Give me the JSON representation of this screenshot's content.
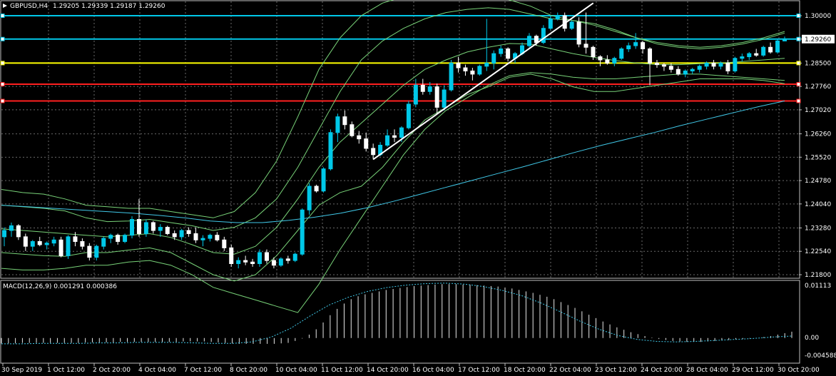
{
  "header": {
    "symbol": "GBPUSD,H4",
    "ohlc": "1.29205 1.29339 1.29187 1.29260"
  },
  "macd": {
    "label": "MACD(12,26,9) 0.001291 0.000386",
    "scale": [
      "0.01113",
      "0.00",
      "-0.004588"
    ]
  },
  "chart_data": {
    "type": "candlestick",
    "instrument": "GBPUSD",
    "timeframe": "H4",
    "price_ticks": [
      "1.30000",
      "1.29260",
      "1.28500",
      "1.27760",
      "1.27020",
      "1.26260",
      "1.25520",
      "1.24780",
      "1.24040",
      "1.23280",
      "1.22540",
      "1.21800"
    ],
    "price_range": [
      1.218,
      1.304
    ],
    "current_price": "1.29260",
    "x_ticks": [
      "30 Sep 2019",
      "1 Oct 12:00",
      "2 Oct 20:00",
      "4 Oct 04:00",
      "7 Oct 12:00",
      "8 Oct 20:00",
      "10 Oct 04:00",
      "11 Oct 12:00",
      "14 Oct 20:00",
      "16 Oct 04:00",
      "17 Oct 12:00",
      "18 Oct 20:00",
      "22 Oct 04:00",
      "23 Oct 12:00",
      "24 Oct 20:00",
      "28 Oct 04:00",
      "29 Oct 12:00",
      "30 Oct 20:00"
    ],
    "horizontal_levels": [
      {
        "price": 1.3,
        "color": "#00c8e8"
      },
      {
        "price": 1.2926,
        "color": "#00c8e8"
      },
      {
        "price": 1.285,
        "color": "#ffff00"
      },
      {
        "price": 1.2783,
        "color": "#ff2020"
      },
      {
        "price": 1.273,
        "color": "#ff2020"
      }
    ],
    "trendline": {
      "from": [
        1.2545,
        1.255
      ],
      "to": [
        1.298,
        1.304
      ],
      "color": "#ffffff"
    },
    "candles": [
      [
        1.23,
        1.233,
        1.227,
        1.232
      ],
      [
        1.232,
        1.2345,
        1.23,
        1.2335
      ],
      [
        1.2335,
        1.234,
        1.229,
        1.23
      ],
      [
        1.23,
        1.231,
        1.2255,
        1.227
      ],
      [
        1.227,
        1.229,
        1.2255,
        1.2285
      ],
      [
        1.2285,
        1.23,
        1.227,
        1.2275
      ],
      [
        1.2275,
        1.2285,
        1.226,
        1.228
      ],
      [
        1.228,
        1.23,
        1.227,
        1.229
      ],
      [
        1.229,
        1.23,
        1.2235,
        1.224
      ],
      [
        1.224,
        1.2305,
        1.223,
        1.23
      ],
      [
        1.23,
        1.2315,
        1.227,
        1.2285
      ],
      [
        1.2285,
        1.2295,
        1.226,
        1.227
      ],
      [
        1.227,
        1.228,
        1.2225,
        1.2235
      ],
      [
        1.2235,
        1.2275,
        1.2225,
        1.227
      ],
      [
        1.227,
        1.23,
        1.226,
        1.2295
      ],
      [
        1.2295,
        1.231,
        1.228,
        1.2305
      ],
      [
        1.2305,
        1.231,
        1.2275,
        1.2285
      ],
      [
        1.2285,
        1.231,
        1.228,
        1.2305
      ],
      [
        1.2305,
        1.2365,
        1.2295,
        1.2355
      ],
      [
        1.2355,
        1.242,
        1.23,
        1.231
      ],
      [
        1.231,
        1.2355,
        1.23,
        1.2345
      ],
      [
        1.2345,
        1.235,
        1.231,
        1.232
      ],
      [
        1.232,
        1.234,
        1.23,
        1.233
      ],
      [
        1.233,
        1.2335,
        1.2305,
        1.231
      ],
      [
        1.231,
        1.232,
        1.229,
        1.23
      ],
      [
        1.23,
        1.2325,
        1.229,
        1.232
      ],
      [
        1.232,
        1.233,
        1.23,
        1.231
      ],
      [
        1.231,
        1.233,
        1.228,
        1.229
      ],
      [
        1.229,
        1.2305,
        1.227,
        1.2295
      ],
      [
        1.2295,
        1.231,
        1.2285,
        1.2305
      ],
      [
        1.2305,
        1.2315,
        1.2285,
        1.229
      ],
      [
        1.229,
        1.23,
        1.2255,
        1.2265
      ],
      [
        1.2265,
        1.2275,
        1.2205,
        1.2215
      ],
      [
        1.2215,
        1.2235,
        1.22,
        1.2225
      ],
      [
        1.2225,
        1.224,
        1.221,
        1.222
      ],
      [
        1.222,
        1.223,
        1.2205,
        1.2215
      ],
      [
        1.2215,
        1.226,
        1.2205,
        1.225
      ],
      [
        1.225,
        1.226,
        1.2215,
        1.2225
      ],
      [
        1.2225,
        1.2235,
        1.22,
        1.221
      ],
      [
        1.221,
        1.2235,
        1.2205,
        1.223
      ],
      [
        1.223,
        1.224,
        1.2215,
        1.2225
      ],
      [
        1.2225,
        1.225,
        1.222,
        1.2245
      ],
      [
        1.2245,
        1.239,
        1.224,
        1.2385
      ],
      [
        1.2385,
        1.247,
        1.237,
        1.246
      ],
      [
        1.246,
        1.2465,
        1.244,
        1.2445
      ],
      [
        1.2445,
        1.252,
        1.244,
        1.2515
      ],
      [
        1.2515,
        1.264,
        1.251,
        1.263
      ],
      [
        1.263,
        1.269,
        1.26,
        1.268
      ],
      [
        1.268,
        1.27,
        1.264,
        1.2655
      ],
      [
        1.2655,
        1.2665,
        1.2615,
        1.262
      ],
      [
        1.262,
        1.2635,
        1.2595,
        1.261
      ],
      [
        1.261,
        1.263,
        1.257,
        1.258
      ],
      [
        1.258,
        1.2595,
        1.2545,
        1.256
      ],
      [
        1.256,
        1.26,
        1.2555,
        1.259
      ],
      [
        1.259,
        1.264,
        1.2585,
        1.262
      ],
      [
        1.262,
        1.264,
        1.26,
        1.2615
      ],
      [
        1.2615,
        1.265,
        1.26,
        1.2645
      ],
      [
        1.2645,
        1.273,
        1.264,
        1.272
      ],
      [
        1.272,
        1.28,
        1.271,
        1.278
      ],
      [
        1.278,
        1.28,
        1.275,
        1.276
      ],
      [
        1.276,
        1.279,
        1.275,
        1.2775
      ],
      [
        1.2775,
        1.2785,
        1.269,
        1.271
      ],
      [
        1.271,
        1.278,
        1.27,
        1.2765
      ],
      [
        1.2765,
        1.286,
        1.276,
        1.285
      ],
      [
        1.285,
        1.287,
        1.282,
        1.2835
      ],
      [
        1.2835,
        1.2845,
        1.281,
        1.2825
      ],
      [
        1.2825,
        1.2835,
        1.2795,
        1.2815
      ],
      [
        1.2815,
        1.2845,
        1.281,
        1.284
      ],
      [
        1.284,
        1.299,
        1.2825,
        1.285
      ],
      [
        1.285,
        1.289,
        1.283,
        1.288
      ],
      [
        1.288,
        1.2905,
        1.287,
        1.2895
      ],
      [
        1.2895,
        1.29,
        1.2855,
        1.2865
      ],
      [
        1.2865,
        1.2885,
        1.285,
        1.288
      ],
      [
        1.288,
        1.2915,
        1.2875,
        1.2905
      ],
      [
        1.2905,
        1.2945,
        1.29,
        1.2935
      ],
      [
        1.2935,
        1.294,
        1.2905,
        1.2915
      ],
      [
        1.2915,
        1.297,
        1.291,
        1.296
      ],
      [
        1.296,
        1.3,
        1.2955,
        1.299
      ],
      [
        1.299,
        1.301,
        1.2985,
        1.3
      ],
      [
        1.3,
        1.301,
        1.295,
        1.296
      ],
      [
        1.296,
        1.2985,
        1.2955,
        1.298
      ],
      [
        1.298,
        1.2995,
        1.29,
        1.291
      ],
      [
        1.291,
        1.301,
        1.288,
        1.29
      ],
      [
        1.29,
        1.2905,
        1.286,
        1.287
      ],
      [
        1.287,
        1.2875,
        1.284,
        1.286
      ],
      [
        1.286,
        1.2875,
        1.2845,
        1.285
      ],
      [
        1.285,
        1.287,
        1.284,
        1.2865
      ],
      [
        1.2865,
        1.29,
        1.286,
        1.2895
      ],
      [
        1.2895,
        1.2915,
        1.2885,
        1.2905
      ],
      [
        1.2905,
        1.2945,
        1.2895,
        1.2915
      ],
      [
        1.2915,
        1.292,
        1.288,
        1.2895
      ],
      [
        1.2895,
        1.29,
        1.278,
        1.285
      ],
      [
        1.285,
        1.286,
        1.2835,
        1.2845
      ],
      [
        1.2845,
        1.285,
        1.2825,
        1.284
      ],
      [
        1.284,
        1.285,
        1.282,
        1.283
      ],
      [
        1.283,
        1.284,
        1.281,
        1.2815
      ],
      [
        1.2815,
        1.283,
        1.2805,
        1.2825
      ],
      [
        1.2825,
        1.2835,
        1.2815,
        1.283
      ],
      [
        1.283,
        1.2845,
        1.282,
        1.284
      ],
      [
        1.284,
        1.2855,
        1.283,
        1.285
      ],
      [
        1.285,
        1.286,
        1.283,
        1.284
      ],
      [
        1.284,
        1.2855,
        1.283,
        1.285
      ],
      [
        1.285,
        1.286,
        1.2815,
        1.2825
      ],
      [
        1.2825,
        1.287,
        1.282,
        1.2865
      ],
      [
        1.2865,
        1.288,
        1.2855,
        1.287
      ],
      [
        1.287,
        1.2885,
        1.286,
        1.288
      ],
      [
        1.288,
        1.2895,
        1.287,
        1.2875
      ],
      [
        1.2875,
        1.2905,
        1.287,
        1.29
      ],
      [
        1.29,
        1.2915,
        1.288,
        1.2885
      ],
      [
        1.2885,
        1.2925,
        1.288,
        1.292
      ],
      [
        1.292,
        1.2934,
        1.2919,
        1.2926
      ]
    ],
    "bollinger": {
      "upper": [
        1.24,
        1.2395,
        1.239,
        1.2382,
        1.236,
        1.2348,
        1.235,
        1.2355,
        1.2345,
        1.2335,
        1.232,
        1.233,
        1.236,
        1.242,
        1.252,
        1.264,
        1.276,
        1.286,
        1.292,
        1.296,
        1.299,
        1.301,
        1.302,
        1.3025,
        1.302,
        1.3005,
        1.299,
        1.2985,
        1.2975,
        1.2955,
        1.293,
        1.291,
        1.29,
        1.2895,
        1.29,
        1.291,
        1.2925,
        1.2945
      ],
      "middle": [
        1.2325,
        1.232,
        1.2315,
        1.231,
        1.2305,
        1.23,
        1.2305,
        1.231,
        1.2298,
        1.2275,
        1.225,
        1.2245,
        1.227,
        1.233,
        1.242,
        1.252,
        1.26,
        1.266,
        1.272,
        1.278,
        1.283,
        1.286,
        1.2885,
        1.29,
        1.2912,
        1.291,
        1.2895,
        1.288,
        1.2868,
        1.2858,
        1.285,
        1.2845,
        1.2845,
        1.2848,
        1.285,
        1.2855,
        1.286,
        1.2865
      ],
      "lower": [
        1.225,
        1.2245,
        1.224,
        1.2238,
        1.225,
        1.225,
        1.2258,
        1.2265,
        1.225,
        1.2215,
        1.218,
        1.216,
        1.218,
        1.224,
        1.232,
        1.24,
        1.244,
        1.246,
        1.252,
        1.26,
        1.267,
        1.271,
        1.275,
        1.2775,
        1.2805,
        1.2815,
        1.28,
        1.2775,
        1.276,
        1.276,
        1.277,
        1.278,
        1.279,
        1.28,
        1.28,
        1.28,
        1.2795,
        1.2785
      ],
      "outer_upper": [
        1.245,
        1.244,
        1.2435,
        1.242,
        1.24,
        1.2395,
        1.239,
        1.239,
        1.238,
        1.237,
        1.236,
        1.238,
        1.244,
        1.254,
        1.268,
        1.283,
        1.293,
        1.3,
        1.304,
        1.306,
        1.307,
        1.3075,
        1.307,
        1.3065,
        1.305,
        1.303,
        1.3,
        1.2985,
        1.297,
        1.295,
        1.293,
        1.2915,
        1.2905,
        1.29,
        1.2905,
        1.2915,
        1.293,
        1.295
      ],
      "outer_lower": [
        1.22,
        1.2195,
        1.2195,
        1.22,
        1.221,
        1.221,
        1.222,
        1.2225,
        1.221,
        1.218,
        1.214,
        1.212,
        1.21,
        1.208,
        1.206,
        1.215,
        1.226,
        1.236,
        1.246,
        1.256,
        1.264,
        1.27,
        1.274,
        1.278,
        1.281,
        1.282,
        1.2815,
        1.2805,
        1.28,
        1.28,
        1.2805,
        1.281,
        1.2815,
        1.2815,
        1.281,
        1.2805,
        1.28,
        1.2795
      ]
    },
    "moving_average": [
      1.24,
      1.2395,
      1.239,
      1.2385,
      1.238,
      1.2375,
      1.2368,
      1.236,
      1.235,
      1.2345,
      1.2345,
      1.2352,
      1.2362,
      1.2375,
      1.2392,
      1.2412,
      1.2434,
      1.2456,
      1.2478,
      1.25,
      1.2522,
      1.2545,
      1.2568,
      1.259,
      1.261,
      1.263,
      1.2652,
      1.2672,
      1.2692,
      1.2712,
      1.273
    ],
    "macd_histogram": [
      -0.0011,
      -0.0011,
      -0.0011,
      -0.001,
      -0.001,
      -0.001,
      -0.001,
      -0.001,
      -0.001,
      -0.001,
      -0.001,
      -0.001,
      -0.0009,
      -0.0009,
      -0.0009,
      -0.0009,
      -0.0009,
      -0.0008,
      -0.0008,
      -0.0008,
      -0.0008,
      -0.0008,
      -0.0008,
      -0.0008,
      -0.0008,
      -0.0008,
      -0.0007,
      -0.0007,
      -0.0007,
      -0.0007,
      -0.0008,
      -0.0009,
      -0.001,
      -0.0011,
      -0.0012,
      -0.0012,
      -0.0012,
      -0.0012,
      -0.0012,
      -0.0012,
      -0.0011,
      -0.001,
      -0.0006,
      -0.0001,
      0.0007,
      0.0018,
      0.0032,
      0.0047,
      0.006,
      0.0071,
      0.008,
      0.0086,
      0.009,
      0.0093,
      0.0096,
      0.0099,
      0.0101,
      0.0103,
      0.0105,
      0.0107,
      0.0108,
      0.0109,
      0.011,
      0.0111,
      0.0111,
      0.0111,
      0.011,
      0.011,
      0.0109,
      0.0108,
      0.0107,
      0.0106,
      0.0104,
      0.0102,
      0.0099,
      0.0096,
      0.0093,
      0.0089,
      0.0085,
      0.008,
      0.0074,
      0.0068,
      0.0062,
      0.0055,
      0.0048,
      0.0041,
      0.0034,
      0.0028,
      0.0022,
      0.0017,
      0.0012,
      0.0008,
      0.0004,
      0.0001,
      -0.0002,
      -0.0004,
      -0.0006,
      -0.0007,
      -0.0008,
      -0.0008,
      -0.0008,
      -0.0007,
      -0.0006,
      -0.0005,
      -0.0004,
      -0.0003,
      -0.0002,
      -0.0001,
      0.0,
      0.0002,
      0.0004,
      0.0007,
      0.001,
      0.0013
    ],
    "macd_signal": [
      -0.0012,
      -0.0012,
      -0.0011,
      -0.0011,
      -0.0011,
      -0.001,
      -0.001,
      -0.0009,
      -0.0009,
      -0.0009,
      -0.001,
      -0.0011,
      -0.0011,
      -0.0008,
      0.0002,
      0.002,
      0.0045,
      0.0068,
      0.0084,
      0.0096,
      0.0104,
      0.0109,
      0.0112,
      0.0113,
      0.0111,
      0.0106,
      0.0098,
      0.0087,
      0.0072,
      0.0054,
      0.0035,
      0.0018,
      0.0005,
      -0.0003,
      -0.0007,
      -0.0008,
      -0.0007,
      -0.0005,
      -0.0003,
      -0.0001,
      0.0002,
      0.0004
    ]
  }
}
